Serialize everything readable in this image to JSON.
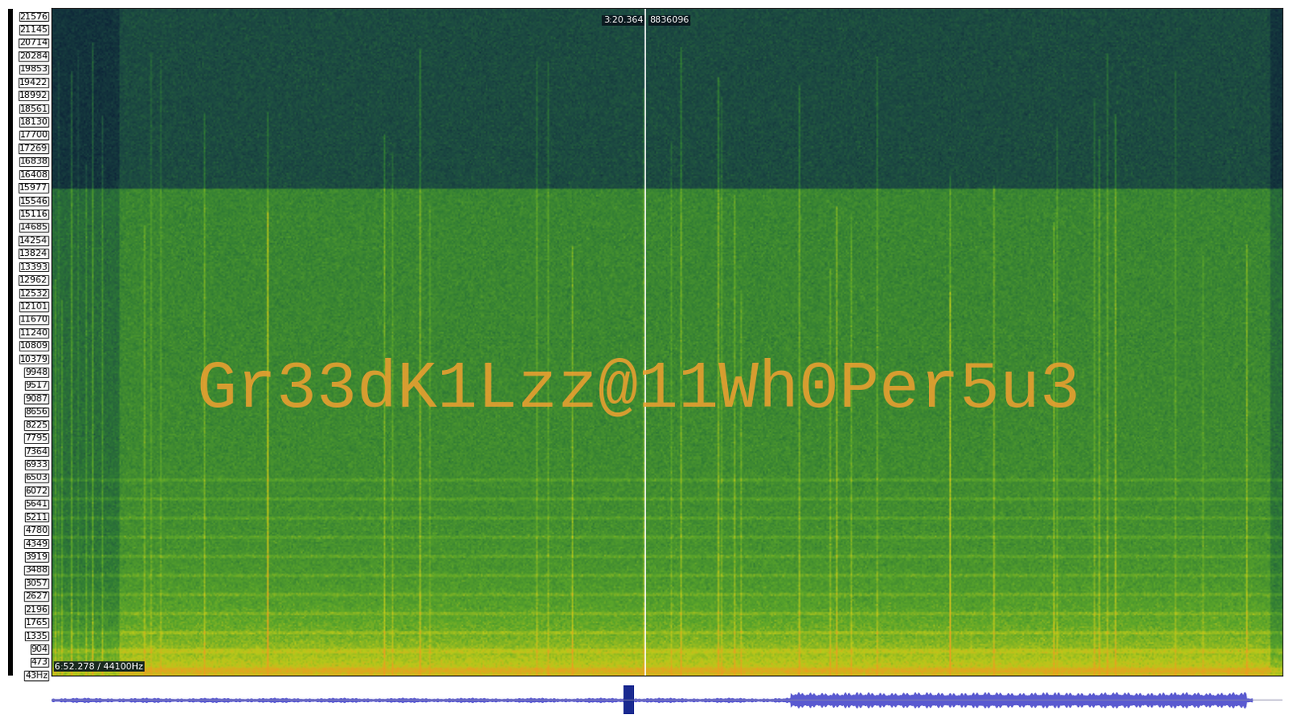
{
  "chart_data": {
    "type": "spectrogram",
    "hidden_text": "Gr33dK1Lzz@11Wh0Per5u3",
    "cursor_time": "3:20.364",
    "cursor_sample": "8836096",
    "status": "6:52.278 / 44100Hz",
    "ylim": [
      0,
      21820
    ],
    "yticks": [
      21576,
      21145,
      20714,
      20284,
      19853,
      19422,
      18992,
      18561,
      18130,
      17700,
      17269,
      16838,
      16408,
      15977,
      15546,
      15116,
      14685,
      14254,
      13824,
      13393,
      12962,
      12532,
      12101,
      11670,
      11240,
      10809,
      10379,
      9948,
      9517,
      9087,
      8656,
      8225,
      7795,
      7364,
      6933,
      6503,
      6072,
      5641,
      5211,
      4780,
      4349,
      3919,
      3488,
      3057,
      2627,
      2196,
      1765,
      1335,
      904,
      473,
      {
        "value": 43,
        "label": "43Hz"
      }
    ],
    "tick_labels": "y"
  }
}
